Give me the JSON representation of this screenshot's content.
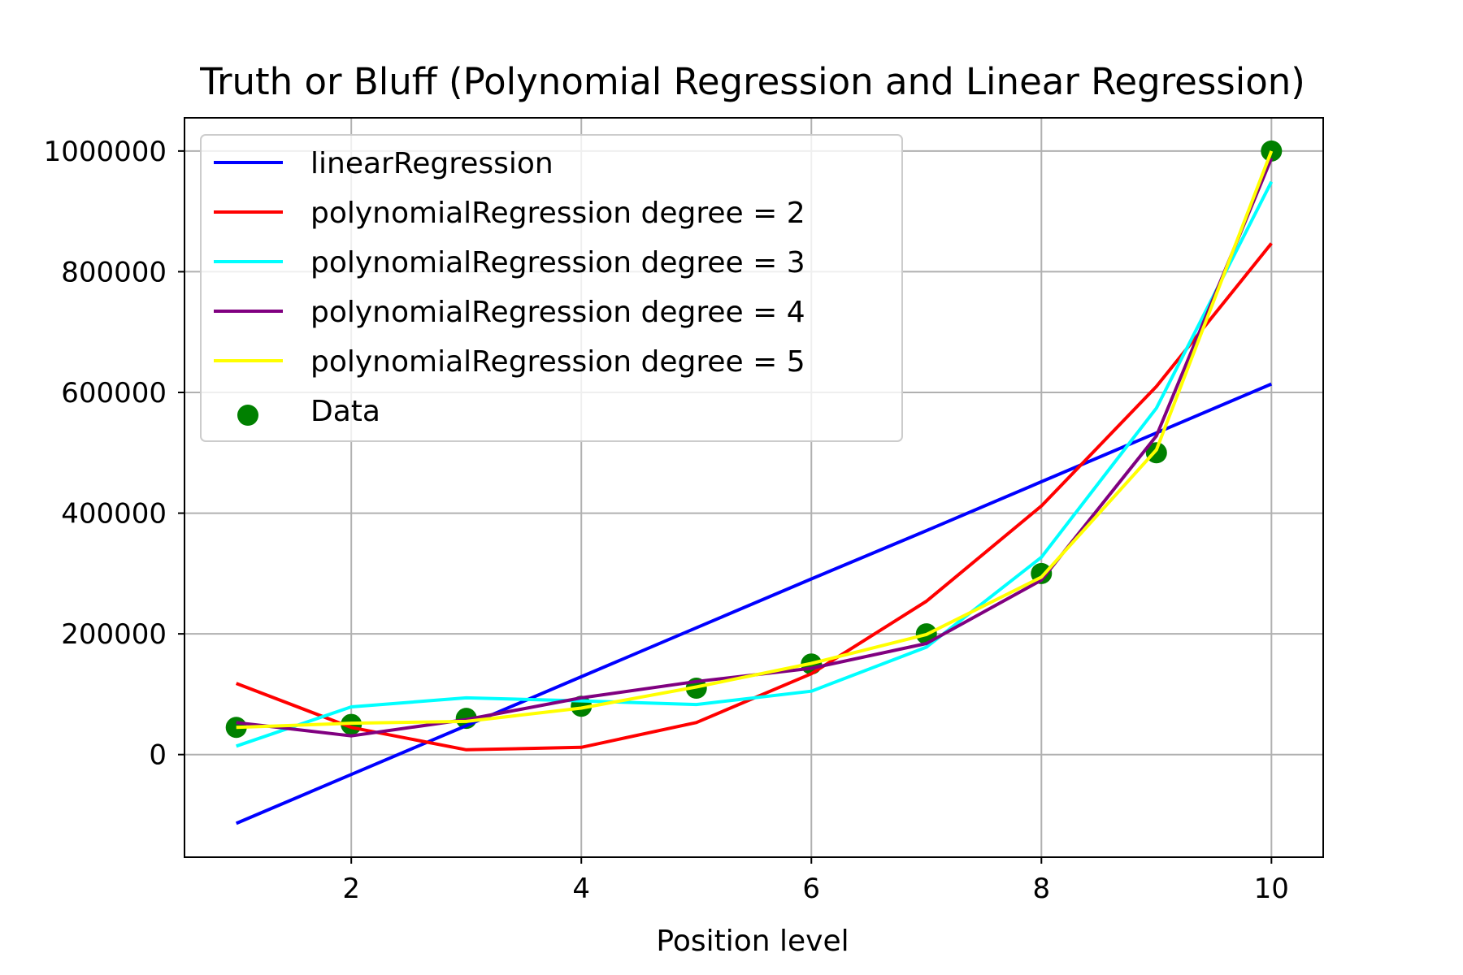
{
  "chart_data": {
    "type": "line",
    "title": "Truth or Bluff (Polynomial Regression and Linear Regression)",
    "xlabel": "Position level",
    "ylabel": "",
    "xlim": [
      0.55,
      10.45
    ],
    "ylim": [
      -170000,
      1055000
    ],
    "grid": true,
    "legend_position": "upper-left",
    "x_ticks": [
      2,
      4,
      6,
      8,
      10
    ],
    "x_tick_labels": [
      "2",
      "4",
      "6",
      "8",
      "10"
    ],
    "y_ticks": [
      0,
      200000,
      400000,
      600000,
      800000,
      1000000
    ],
    "y_tick_labels": [
      "0",
      "200000",
      "400000",
      "600000",
      "800000",
      "1000000"
    ],
    "x": [
      1,
      2,
      3,
      4,
      5,
      6,
      7,
      8,
      9,
      10
    ],
    "series": [
      {
        "name": "linearRegression",
        "color": "#0000ff",
        "values": [
          -114000,
          -33000,
          48000,
          129000,
          210000,
          291000,
          371000,
          452000,
          533000,
          614000
        ]
      },
      {
        "name": "polynomialRegression degree = 2",
        "color": "#ff0000",
        "values": [
          118000,
          45000,
          8000,
          12000,
          53000,
          134000,
          254000,
          412000,
          610000,
          847000
        ]
      },
      {
        "name": "polynomialRegression degree = 3",
        "color": "#00ffff",
        "values": [
          14000,
          79000,
          94000,
          89000,
          83000,
          105000,
          178000,
          327000,
          574000,
          949000
        ]
      },
      {
        "name": "polynomialRegression degree = 4",
        "color": "#800080",
        "values": [
          53000,
          31000,
          58000,
          94000,
          121000,
          143000,
          184000,
          289000,
          528000,
          988000
        ]
      },
      {
        "name": "polynomialRegression degree = 5",
        "color": "#ffff00",
        "values": [
          45000,
          52000,
          55000,
          77000,
          112000,
          151000,
          199000,
          294000,
          505000,
          1000000
        ]
      }
    ],
    "scatter": {
      "name": "Data",
      "color": "#008000",
      "values": [
        45000,
        50000,
        60000,
        80000,
        110000,
        150000,
        200000,
        300000,
        500000,
        1000000
      ]
    }
  }
}
